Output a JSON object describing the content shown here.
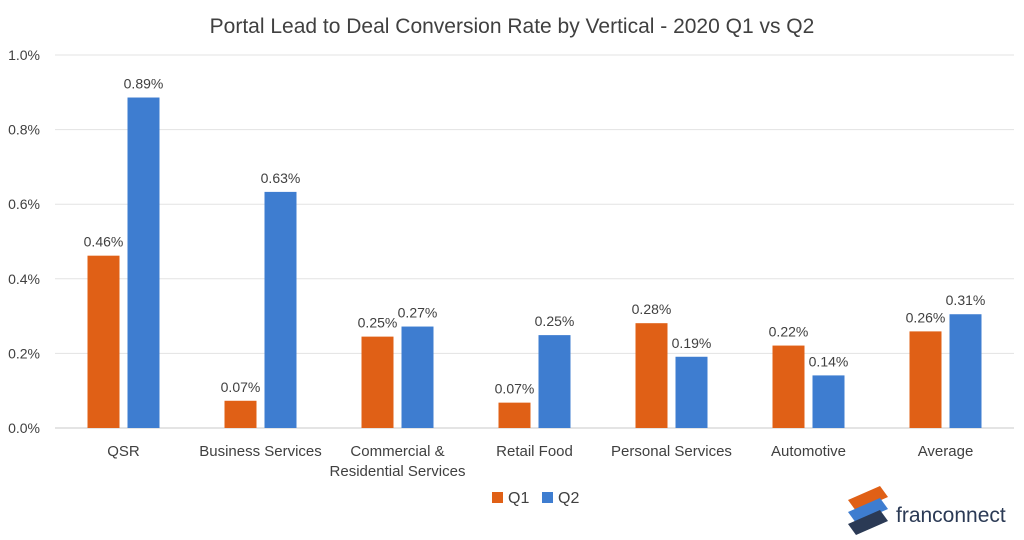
{
  "chart_data": {
    "type": "bar",
    "title": "Portal Lead to Deal Conversion Rate by Vertical - 2020 Q1 vs Q2",
    "xlabel": "",
    "ylabel": "",
    "ylim": [
      0,
      1.0
    ],
    "yticks": [
      "0.0%",
      "0.2%",
      "0.4%",
      "0.6%",
      "0.8%",
      "1.0%"
    ],
    "ytick_values": [
      0,
      0.2,
      0.4,
      0.6,
      0.8,
      1.0
    ],
    "grid": true,
    "legend_position": "bottom",
    "categories": [
      [
        "QSR"
      ],
      [
        "Business Services"
      ],
      [
        "Commercial &",
        "Residential Services"
      ],
      [
        "Retail Food"
      ],
      [
        "Personal Services"
      ],
      [
        "Automotive"
      ],
      [
        "Average"
      ]
    ],
    "series": [
      {
        "name": "Q1",
        "color": "#E06016",
        "values": [
          0.462,
          0.073,
          0.245,
          0.068,
          0.281,
          0.221,
          0.259
        ],
        "labels": [
          "0.46%",
          "0.07%",
          "0.25%",
          "0.07%",
          "0.28%",
          "0.22%",
          "0.26%"
        ]
      },
      {
        "name": "Q2",
        "color": "#3E7DD0",
        "values": [
          0.886,
          0.633,
          0.272,
          0.249,
          0.191,
          0.141,
          0.305
        ],
        "labels": [
          "0.89%",
          "0.63%",
          "0.27%",
          "0.25%",
          "0.19%",
          "0.14%",
          "0.31%"
        ]
      }
    ]
  },
  "logo": {
    "text": "franconnect",
    "icon": "franconnect-logo-icon"
  }
}
